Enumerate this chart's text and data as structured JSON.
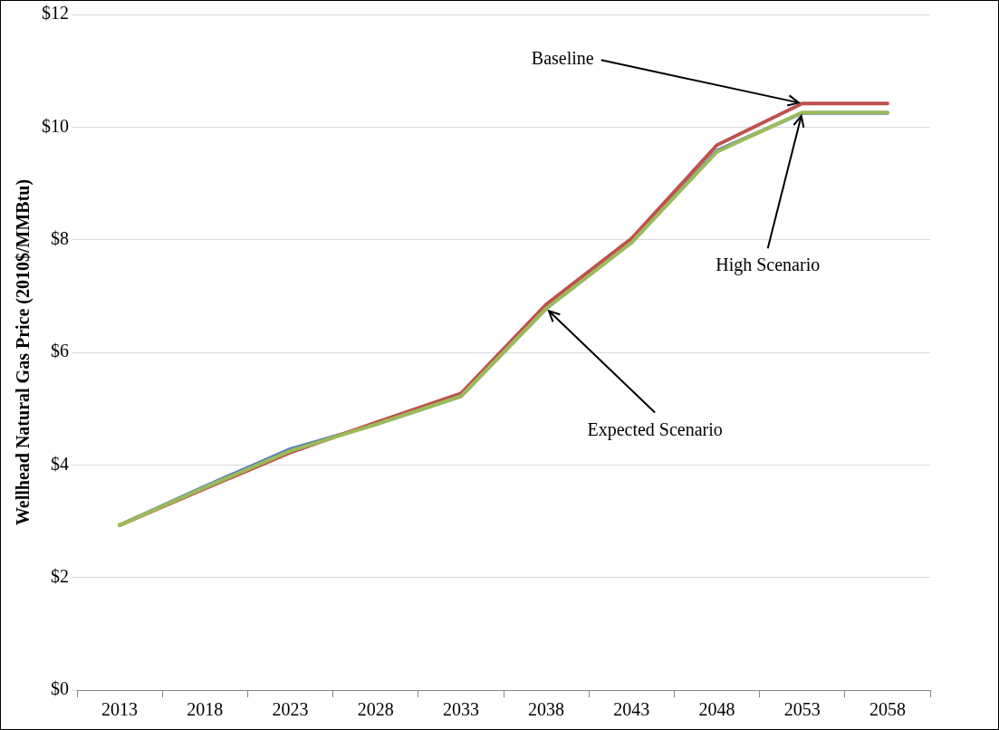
{
  "chart_data": {
    "type": "line",
    "ylabel": "Wellhead Natural Gas Price (2010$/MMBtu)",
    "categories": [
      "2013",
      "2018",
      "2023",
      "2028",
      "2033",
      "2038",
      "2043",
      "2048",
      "2053",
      "2058"
    ],
    "series": [
      {
        "color": "#4f81bd",
        "values": [
          2.93,
          3.62,
          4.28,
          4.72,
          5.22,
          6.78,
          7.95,
          9.58,
          10.25,
          10.25
        ]
      },
      {
        "color": "#c0504d",
        "values": [
          2.93,
          3.58,
          4.22,
          4.75,
          5.27,
          6.85,
          8.02,
          9.68,
          10.42,
          10.42
        ]
      },
      {
        "color": "#9bbb59",
        "values": [
          2.93,
          3.6,
          4.25,
          4.72,
          5.22,
          6.78,
          7.95,
          9.56,
          10.26,
          10.26
        ]
      }
    ],
    "annotations": [
      {
        "text": "Baseline",
        "x": "2053",
        "y": 10.42
      },
      {
        "text": "High Scenario",
        "x": "2053",
        "y": 10.26
      },
      {
        "text": "Expected Scenario",
        "x": "2038",
        "y": 6.78
      }
    ],
    "ylim": [
      0,
      12
    ],
    "yticks": [
      {
        "value": 0,
        "label": "$0"
      },
      {
        "value": 2,
        "label": "$2"
      },
      {
        "value": 4,
        "label": "$4"
      },
      {
        "value": 6,
        "label": "$6"
      },
      {
        "value": 8,
        "label": "$8"
      },
      {
        "value": 10,
        "label": "$10"
      },
      {
        "value": 12,
        "label": "$12"
      }
    ],
    "grid": "y",
    "legend": false,
    "marker": "none",
    "line_style": "solid"
  }
}
